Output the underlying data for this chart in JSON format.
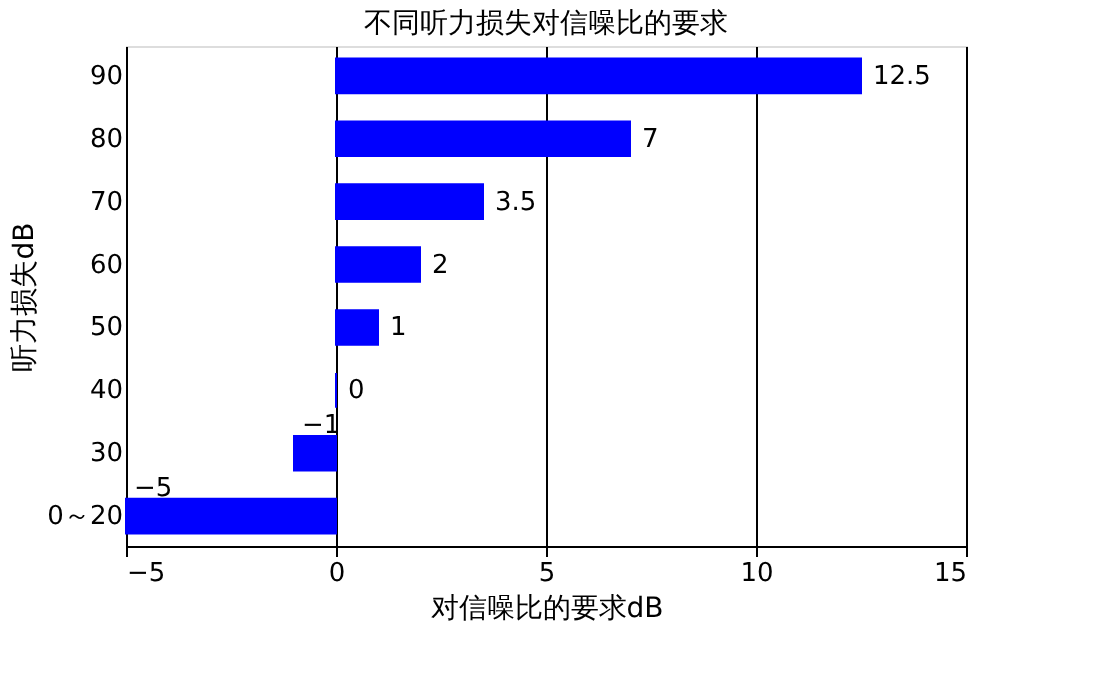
{
  "chart_data": {
    "type": "bar",
    "orientation": "horizontal",
    "title": "不同听力损失对信噪比的要求",
    "xlabel": "对信噪比的要求dB",
    "ylabel": "听力损失dB",
    "categories": [
      "90",
      "80",
      "70",
      "60",
      "50",
      "40",
      "30",
      "0～20"
    ],
    "values": [
      12.5,
      7,
      3.5,
      2,
      1,
      0,
      -1,
      -5
    ],
    "color": "#0000ff",
    "xlim": [
      -5,
      15
    ],
    "xticks": [
      -5,
      0,
      5,
      10,
      15
    ],
    "grid": "x",
    "data_labels": true
  }
}
